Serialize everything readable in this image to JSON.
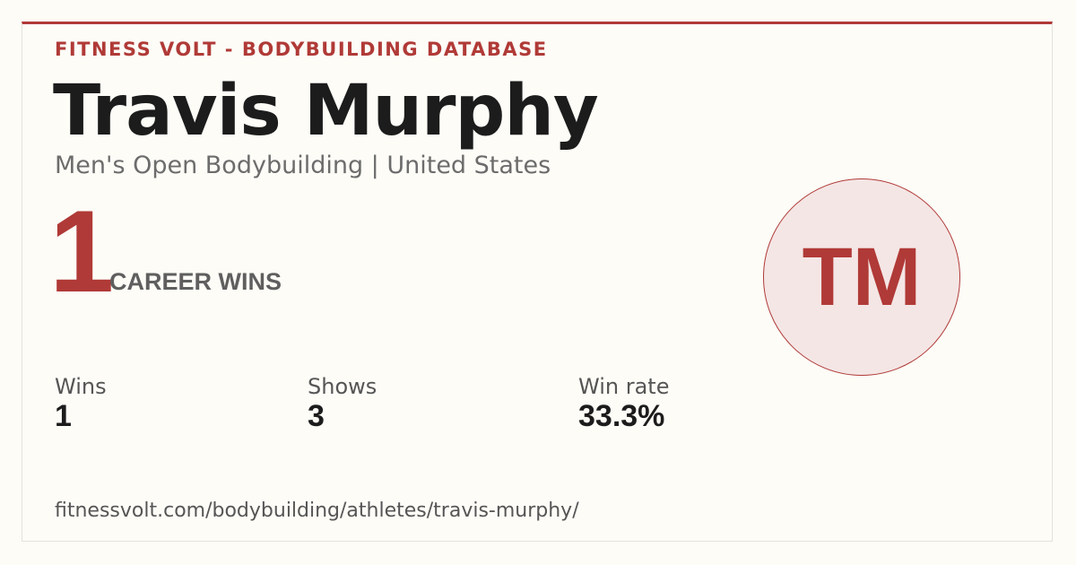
{
  "header": {
    "site": "FITNESS VOLT - BODYBUILDING DATABASE",
    "name": "Travis Murphy",
    "subtitle": "Men's Open Bodybuilding | United States"
  },
  "headline": {
    "number": "1",
    "label": "CAREER WINS"
  },
  "avatar": {
    "initials": "TM"
  },
  "stats": [
    {
      "label": "Wins",
      "value": "1"
    },
    {
      "label": "Shows",
      "value": "3"
    },
    {
      "label": "Win rate",
      "value": "33.3%"
    }
  ],
  "footer": {
    "url": "fitnessvolt.com/bodybuilding/athletes/travis-murphy/"
  }
}
